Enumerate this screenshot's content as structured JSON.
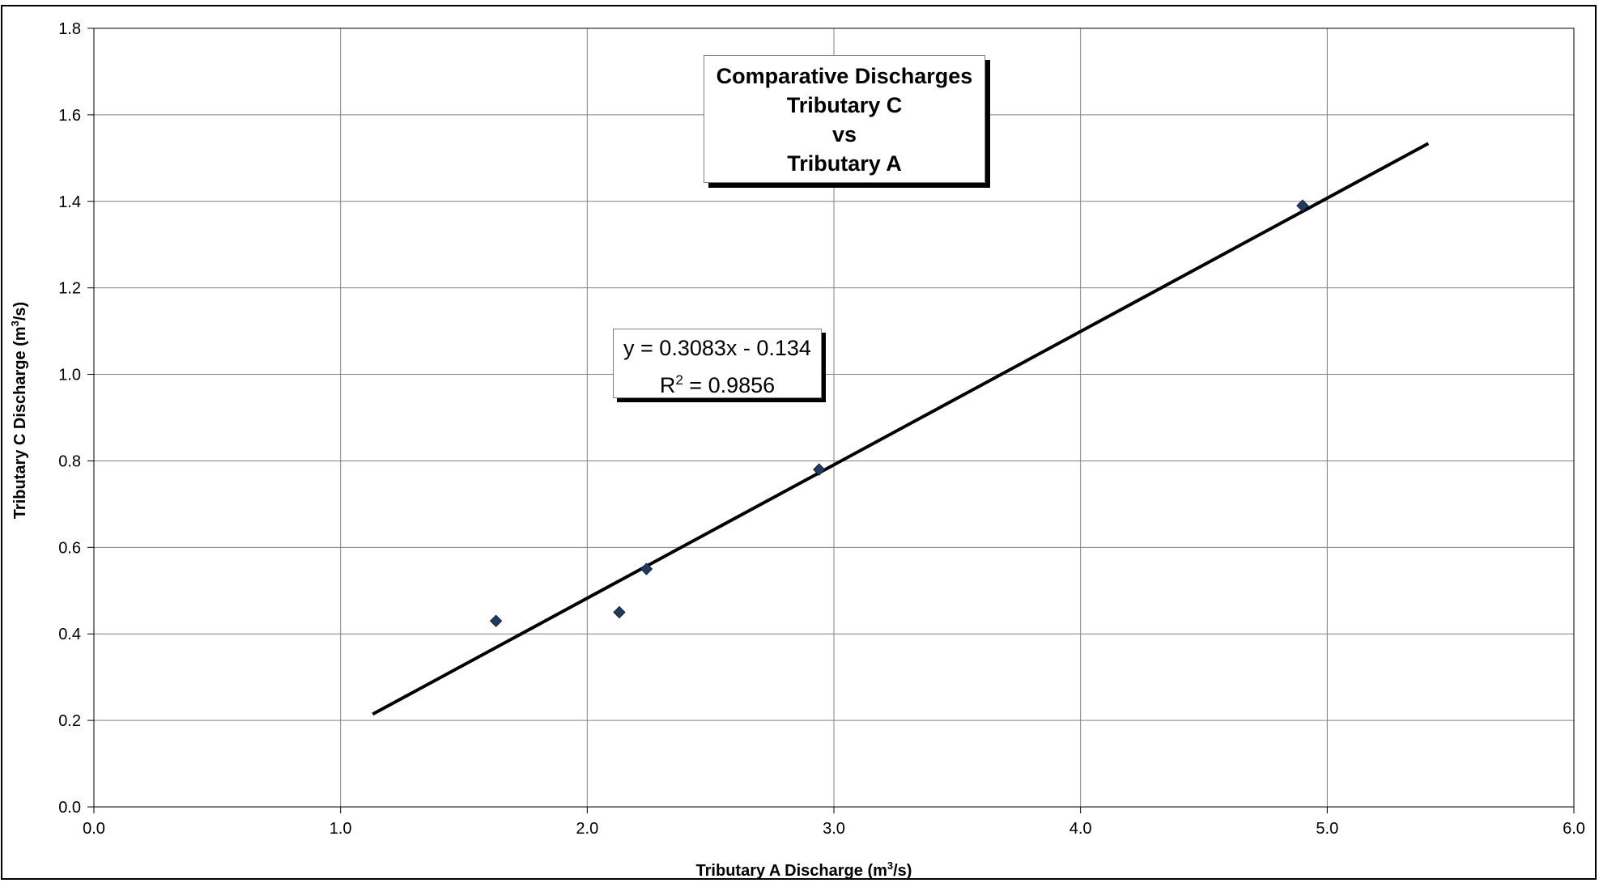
{
  "chart_data": {
    "type": "scatter",
    "title": [
      "Comparative Discharges",
      "Tributary C",
      "vs",
      "Tributary A"
    ],
    "xlabel": {
      "pre": "Tributary A Discharge (m",
      "sup": "3",
      "post": "/s)"
    },
    "ylabel": {
      "pre": "Tributary C Discharge (m",
      "sup": "3",
      "post": "/s)"
    },
    "xlim": [
      0,
      6
    ],
    "ylim": [
      0,
      1.8
    ],
    "x_ticks": [
      "0.0",
      "1.0",
      "2.0",
      "3.0",
      "4.0",
      "5.0",
      "6.0"
    ],
    "y_ticks": [
      "0.0",
      "0.2",
      "0.4",
      "0.6",
      "0.8",
      "1.0",
      "1.2",
      "1.4",
      "1.6",
      "1.8"
    ],
    "grid": true,
    "points": [
      {
        "x": 1.63,
        "y": 0.43
      },
      {
        "x": 2.13,
        "y": 0.45
      },
      {
        "x": 2.24,
        "y": 0.55
      },
      {
        "x": 2.94,
        "y": 0.78
      },
      {
        "x": 4.9,
        "y": 1.39
      }
    ],
    "trendline": {
      "slope": 0.3083,
      "intercept": -0.134,
      "x_range": [
        1.13,
        5.41
      ]
    },
    "equation_label": "y = 0.3083x - 0.134",
    "r2_label": {
      "pre": "R",
      "sup": "2",
      "post": " = 0.9856"
    },
    "colors": {
      "marker": "#1f3c5e",
      "trendline": "#000000",
      "grid": "#808080"
    }
  }
}
